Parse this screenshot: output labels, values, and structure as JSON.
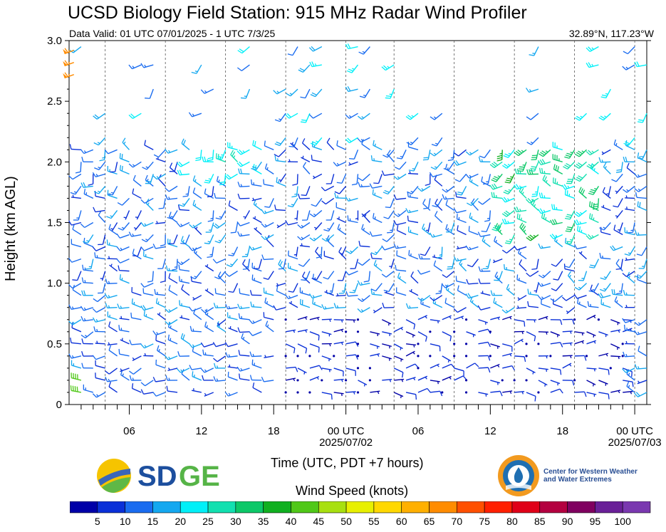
{
  "header": {
    "title": "UCSD Biology Field Station: 915 MHz Radar Wind Profiler",
    "valid": "Data Valid: 01 UTC 07/01/2025 - 1 UTC 7/3/25",
    "coords": "32.89°N, 117.23°W"
  },
  "logos": {
    "sdge": "SDGE",
    "cw3e_line1": "Center for Western Weather",
    "cw3e_line2": "and Water Extremes"
  },
  "chart_data": {
    "type": "wind-barb time-height",
    "ylabel": "Height (km AGL)",
    "xlabel": "Time (UTC, PDT +7 hours)",
    "ylim": [
      0,
      3.0
    ],
    "yticks": [
      "0",
      "0.5",
      "1.0",
      "1.5",
      "2.0",
      "2.5",
      "3.0"
    ],
    "xlim_hours": [
      1,
      49
    ],
    "xticks": [
      {
        "hour": 6,
        "label": "06",
        "sub": ""
      },
      {
        "hour": 12,
        "label": "12",
        "sub": ""
      },
      {
        "hour": 18,
        "label": "18",
        "sub": ""
      },
      {
        "hour": 24,
        "label": "00 UTC",
        "sub": "2025/07/02"
      },
      {
        "hour": 30,
        "label": "06",
        "sub": ""
      },
      {
        "hour": 36,
        "label": "12",
        "sub": ""
      },
      {
        "hour": 42,
        "label": "18",
        "sub": ""
      },
      {
        "hour": 48,
        "label": "00 UTC",
        "sub": "2025/07/03"
      }
    ],
    "dashed_gridlines_hours": [
      4,
      9,
      14,
      19,
      24,
      28,
      33,
      38,
      43,
      48
    ],
    "colorbar": {
      "label": "Wind Speed (knots)",
      "ticks": [
        "5",
        "10",
        "15",
        "20",
        "25",
        "30",
        "35",
        "40",
        "45",
        "50",
        "55",
        "60",
        "65",
        "70",
        "75",
        "80",
        "85",
        "90",
        "95",
        "100"
      ],
      "colors": [
        "#0000a8",
        "#0a30d8",
        "#1a6cf0",
        "#14a8f0",
        "#00f0f8",
        "#12e0b0",
        "#0cc868",
        "#10b020",
        "#50c818",
        "#a8e010",
        "#e8f000",
        "#ffd800",
        "#ffb000",
        "#ff8c00",
        "#ff5000",
        "#ff2000",
        "#e00018",
        "#b40040",
        "#800060",
        "#6a2098",
        "#7a38b0"
      ]
    },
    "wind_profile": {
      "description": "Wind barbs plotted hourly at range gates; speeds mostly 5-25 knots (blue), higher speeds 25-45 knots (cyan/green) near 1.5-2.2 km around hours 37-45, and 60-70 knots (orange) at top-left near 2.8 km.",
      "columns_hours": [
        2,
        3,
        4,
        5,
        6,
        7,
        8,
        9,
        10,
        11,
        12,
        13,
        14,
        15,
        16,
        17,
        18,
        19,
        20,
        21,
        22,
        23,
        24,
        25,
        26,
        27,
        28,
        29,
        30,
        31,
        32,
        33,
        34,
        35,
        36,
        37,
        38,
        39,
        40,
        41,
        42,
        43,
        44,
        45,
        46,
        47,
        48,
        49
      ],
      "levels_km": [
        0.1,
        0.2,
        0.3,
        0.4,
        0.5,
        0.6,
        0.7,
        0.8,
        0.9,
        1.0,
        1.1,
        1.2,
        1.3,
        1.4,
        1.5,
        1.6,
        1.7,
        1.8,
        1.9,
        2.0,
        2.1
      ],
      "upper_gates_km": [
        2.2,
        2.4,
        2.6,
        2.8,
        2.95
      ]
    }
  }
}
